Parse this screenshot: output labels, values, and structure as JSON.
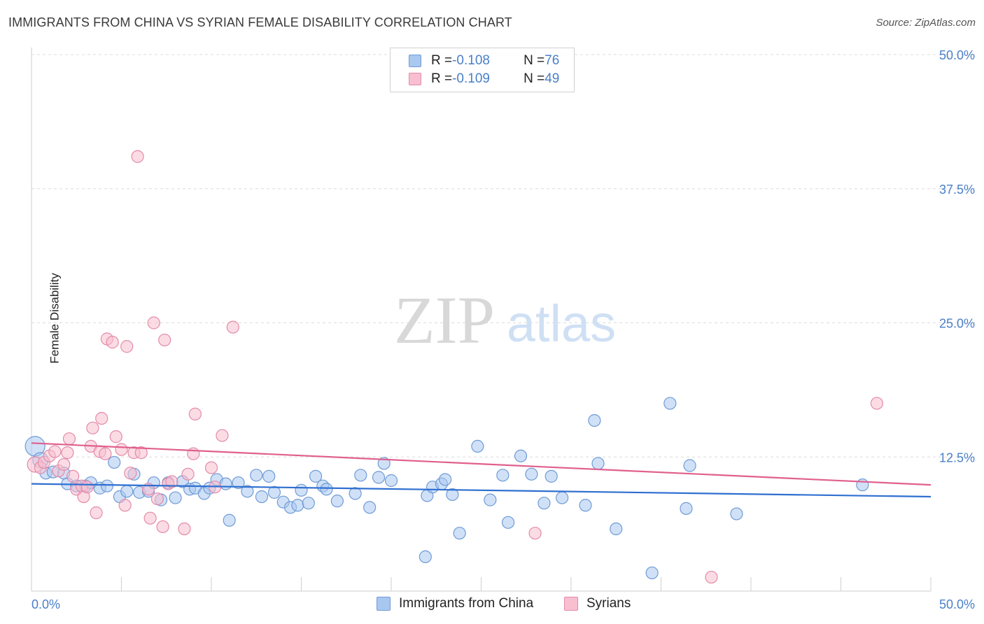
{
  "title": "IMMIGRANTS FROM CHINA VS SYRIAN FEMALE DISABILITY CORRELATION CHART",
  "source": "Source: ZipAtlas.com",
  "watermark": {
    "zip": "ZIP",
    "atlas": "atlas"
  },
  "legend_top": [
    {
      "r_label": "R = ",
      "r_value": "-0.108",
      "n_label": "N = ",
      "n_value": "76",
      "color": "#a9c8f0",
      "border": "#6f9bd6"
    },
    {
      "r_label": "R = ",
      "r_value": "-0.109",
      "n_label": "N = ",
      "n_value": "49",
      "color": "#f7bfd0",
      "border": "#e48aa8"
    }
  ],
  "legend_bottom": [
    {
      "label": "Immigrants from China",
      "color": "#a9c8f0",
      "border": "#6f9bd6"
    },
    {
      "label": "Syrians",
      "color": "#f7bfd0",
      "border": "#e48aa8"
    }
  ],
  "chart_data": {
    "type": "scatter",
    "xlabel": "",
    "ylabel": "Female Disability",
    "xlim": [
      0,
      50
    ],
    "ylim": [
      0,
      50
    ],
    "x_tick_labels": [
      "0.0%",
      "50.0%"
    ],
    "y_ticks": [
      12.5,
      25.0,
      37.5,
      50.0
    ],
    "y_tick_labels": [
      "12.5%",
      "25.0%",
      "37.5%",
      "50.0%"
    ],
    "grid": true,
    "series": [
      {
        "name": "Immigrants from China",
        "color": "#6f9bd6",
        "fill": "#a9c8f0",
        "trend_color": "#2f6fd0",
        "trend": {
          "x": [
            0,
            50
          ],
          "y": [
            10.0,
            8.8
          ]
        },
        "points": [
          [
            0.2,
            13.5
          ],
          [
            0.5,
            12.2
          ],
          [
            0.8,
            11.0
          ],
          [
            1.2,
            11.1
          ],
          [
            1.8,
            11.0
          ],
          [
            2.0,
            10.0
          ],
          [
            2.5,
            9.8
          ],
          [
            3.0,
            9.8
          ],
          [
            3.3,
            10.1
          ],
          [
            3.8,
            9.6
          ],
          [
            4.2,
            9.8
          ],
          [
            4.6,
            12.0
          ],
          [
            4.9,
            8.8
          ],
          [
            5.3,
            9.3
          ],
          [
            5.7,
            10.9
          ],
          [
            6.0,
            9.2
          ],
          [
            6.5,
            9.3
          ],
          [
            6.8,
            10.1
          ],
          [
            7.2,
            8.5
          ],
          [
            7.6,
            10.1
          ],
          [
            8.0,
            8.7
          ],
          [
            8.4,
            10.2
          ],
          [
            8.8,
            9.5
          ],
          [
            9.1,
            9.6
          ],
          [
            9.6,
            9.1
          ],
          [
            9.9,
            9.6
          ],
          [
            10.3,
            10.4
          ],
          [
            10.8,
            10.0
          ],
          [
            11.0,
            6.6
          ],
          [
            11.5,
            10.1
          ],
          [
            12.0,
            9.3
          ],
          [
            12.5,
            10.8
          ],
          [
            12.8,
            8.8
          ],
          [
            13.2,
            10.7
          ],
          [
            13.5,
            9.2
          ],
          [
            14.0,
            8.3
          ],
          [
            14.4,
            7.8
          ],
          [
            14.8,
            8.0
          ],
          [
            15.0,
            9.4
          ],
          [
            15.4,
            8.2
          ],
          [
            15.8,
            10.7
          ],
          [
            16.2,
            9.8
          ],
          [
            16.4,
            9.5
          ],
          [
            17.0,
            8.4
          ],
          [
            18.0,
            9.1
          ],
          [
            18.3,
            10.8
          ],
          [
            18.8,
            7.8
          ],
          [
            19.3,
            10.6
          ],
          [
            19.6,
            11.9
          ],
          [
            20.0,
            10.3
          ],
          [
            21.9,
            3.2
          ],
          [
            22.0,
            8.9
          ],
          [
            22.3,
            9.7
          ],
          [
            22.8,
            10.0
          ],
          [
            23.0,
            10.4
          ],
          [
            23.4,
            9.0
          ],
          [
            23.8,
            5.4
          ],
          [
            24.8,
            13.5
          ],
          [
            25.5,
            8.5
          ],
          [
            26.2,
            10.8
          ],
          [
            26.5,
            6.4
          ],
          [
            27.2,
            12.6
          ],
          [
            27.8,
            10.9
          ],
          [
            28.5,
            8.2
          ],
          [
            28.9,
            10.7
          ],
          [
            29.5,
            8.7
          ],
          [
            30.8,
            8.0
          ],
          [
            31.3,
            15.9
          ],
          [
            31.5,
            11.9
          ],
          [
            32.5,
            5.8
          ],
          [
            34.5,
            1.7
          ],
          [
            35.5,
            17.5
          ],
          [
            36.4,
            7.7
          ],
          [
            36.6,
            11.7
          ],
          [
            39.2,
            7.2
          ],
          [
            46.2,
            9.9
          ]
        ]
      },
      {
        "name": "Syrians",
        "color": "#e48aa8",
        "fill": "#f7bfd0",
        "trend_color": "#e0608d",
        "trend": {
          "x": [
            0,
            50
          ],
          "y": [
            13.8,
            9.9
          ]
        },
        "points": [
          [
            0.2,
            11.8
          ],
          [
            0.5,
            11.5
          ],
          [
            0.7,
            12.0
          ],
          [
            1.0,
            12.6
          ],
          [
            1.3,
            13.0
          ],
          [
            1.5,
            11.2
          ],
          [
            1.8,
            11.8
          ],
          [
            2.0,
            12.9
          ],
          [
            2.1,
            14.2
          ],
          [
            2.3,
            10.7
          ],
          [
            2.5,
            9.5
          ],
          [
            2.8,
            9.8
          ],
          [
            2.9,
            8.8
          ],
          [
            3.1,
            9.7
          ],
          [
            3.3,
            13.5
          ],
          [
            3.4,
            15.2
          ],
          [
            3.6,
            7.3
          ],
          [
            3.8,
            13.0
          ],
          [
            3.9,
            16.1
          ],
          [
            4.1,
            12.8
          ],
          [
            4.2,
            23.5
          ],
          [
            4.5,
            23.2
          ],
          [
            4.7,
            14.4
          ],
          [
            5.0,
            13.2
          ],
          [
            5.2,
            8.0
          ],
          [
            5.3,
            22.8
          ],
          [
            5.5,
            11.0
          ],
          [
            5.7,
            12.9
          ],
          [
            5.9,
            40.5
          ],
          [
            6.1,
            12.9
          ],
          [
            6.5,
            9.5
          ],
          [
            6.6,
            6.8
          ],
          [
            6.8,
            25.0
          ],
          [
            7.0,
            8.6
          ],
          [
            7.3,
            6.0
          ],
          [
            7.4,
            23.4
          ],
          [
            7.6,
            10.0
          ],
          [
            7.8,
            10.2
          ],
          [
            8.5,
            5.8
          ],
          [
            8.7,
            10.9
          ],
          [
            9.0,
            12.8
          ],
          [
            9.1,
            16.5
          ],
          [
            10.0,
            11.5
          ],
          [
            10.2,
            9.7
          ],
          [
            10.6,
            14.5
          ],
          [
            11.2,
            24.6
          ],
          [
            28.0,
            5.4
          ],
          [
            37.8,
            1.3
          ],
          [
            47.0,
            17.5
          ]
        ]
      }
    ]
  }
}
